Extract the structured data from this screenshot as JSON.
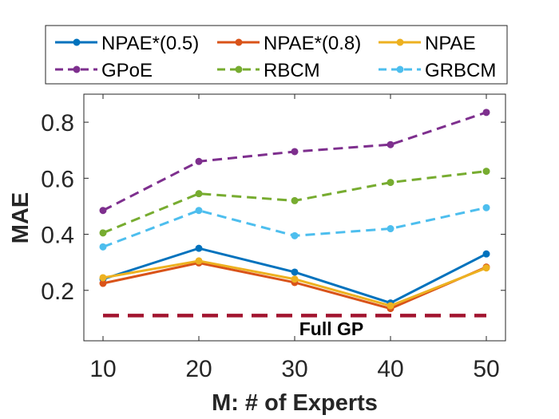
{
  "chart_data": {
    "type": "line",
    "title": "",
    "xlabel": "M: # of Experts",
    "ylabel": "MAE",
    "x": [
      10,
      20,
      30,
      40,
      50
    ],
    "xticks": [
      "10",
      "20",
      "30",
      "40",
      "50"
    ],
    "yticks": [
      "0.2",
      "0.4",
      "0.6",
      "0.8"
    ],
    "xlim": [
      8,
      52
    ],
    "ylim": [
      0.02,
      0.9
    ],
    "grid": false,
    "legend_position": "top",
    "series": [
      {
        "name": "NPAE*(0.5)",
        "color": "#0072BD",
        "style": "solid",
        "values": [
          0.24,
          0.35,
          0.265,
          0.155,
          0.33
        ]
      },
      {
        "name": "NPAE*(0.8)",
        "color": "#D95319",
        "style": "solid",
        "values": [
          0.225,
          0.298,
          0.228,
          0.135,
          0.283
        ]
      },
      {
        "name": "NPAE",
        "color": "#EDB120",
        "style": "solid",
        "values": [
          0.245,
          0.305,
          0.24,
          0.145,
          0.28
        ]
      },
      {
        "name": "GPoE",
        "color": "#7E2F8E",
        "style": "dashed",
        "values": [
          0.485,
          0.66,
          0.695,
          0.72,
          0.835
        ]
      },
      {
        "name": "RBCM",
        "color": "#77AC30",
        "style": "dashed",
        "values": [
          0.405,
          0.545,
          0.52,
          0.585,
          0.625
        ]
      },
      {
        "name": "GRBCM",
        "color": "#4DBEEE",
        "style": "dashed",
        "values": [
          0.355,
          0.485,
          0.395,
          0.42,
          0.495
        ]
      }
    ],
    "reference_line": {
      "name": "Full GP",
      "value": 0.11,
      "color": "#A2142F"
    }
  }
}
